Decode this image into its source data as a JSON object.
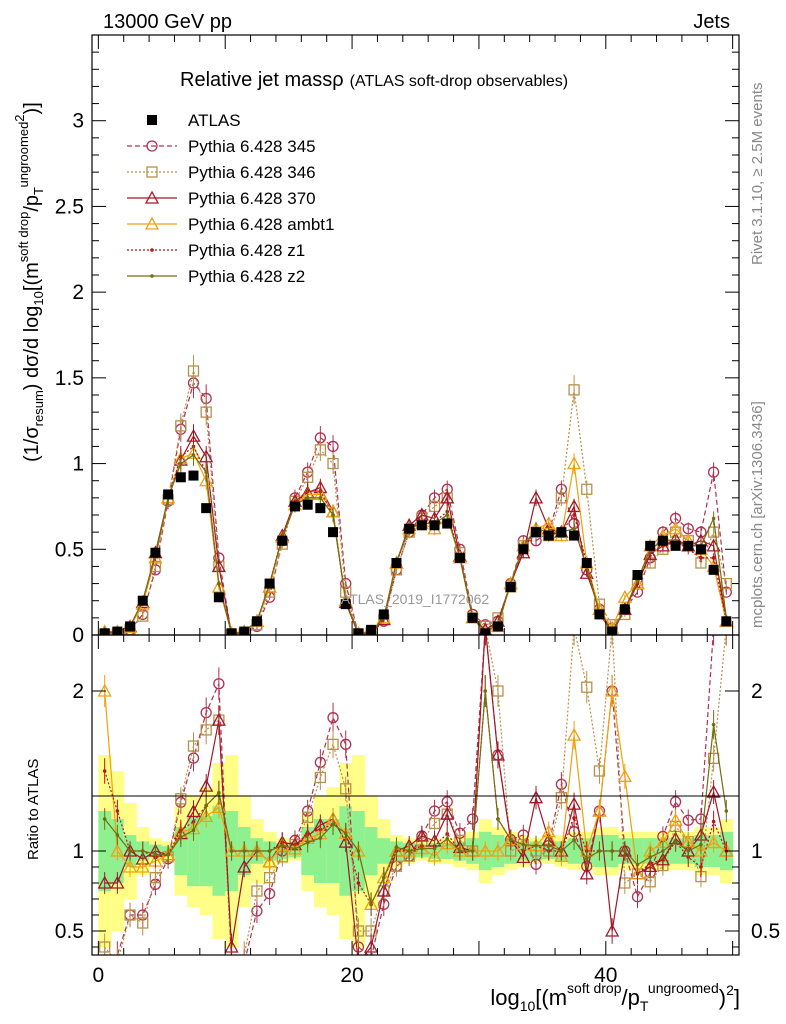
{
  "header": {
    "left": "13000 GeV pp",
    "right": "Jets"
  },
  "side_labels": {
    "rivet": "Rivet 3.1.10, ≥ 2.5M events",
    "mcplots": "mcplots.cern.ch [arXiv:1306.3436]"
  },
  "watermark": "ATLAS_2019_I1772062",
  "y_ratio_label": "Ratio to ATLAS",
  "x_axis": {
    "label_parts": {
      "log": "log",
      "sub": "10",
      "open": "[(m",
      "sup1": "soft drop",
      "mid": "/p",
      "sub2": "T",
      "sup2": "ungroomed",
      "exp": "2",
      "close": ")",
      "end": "]"
    }
  },
  "y_axis": {
    "label_parts": {
      "a": "(1/σ",
      "sub1": "resum",
      "b": ") dσ/d log",
      "sub2": "10",
      "c": "[(m",
      "sup1": "soft drop",
      "d": "/p",
      "sub3": "T",
      "sup2": "ungroomed",
      "sup3": "2",
      "e": ")]"
    }
  },
  "chart_data": {
    "type": "line",
    "title": "Relative jet massρ",
    "subtitle": "(ATLAS soft-drop observables)",
    "xlabel": "log10[(m^soft drop/pT^ungroomed)^2]",
    "ylabel": "(1/σ_resum) dσ/d log10[(m^soft drop/pT^ungroomed)^2]",
    "xlim": [
      -0.5,
      50.5
    ],
    "ylim": [
      0,
      3.5
    ],
    "x_ticks": [
      "0",
      "20",
      "40"
    ],
    "y_ticks": [
      "0",
      "0.5",
      "1",
      "1.5",
      "2",
      "2.5",
      "3"
    ],
    "ratio_ylim": [
      0.35,
      2.35
    ],
    "ratio_ticks": [
      "0.5",
      "1",
      "2"
    ],
    "legend_position": "top-left",
    "x": [
      0.5,
      1.5,
      2.5,
      3.5,
      4.5,
      5.5,
      6.5,
      7.5,
      8.5,
      9.5,
      10.5,
      11.5,
      12.5,
      13.5,
      14.5,
      15.5,
      16.5,
      17.5,
      18.5,
      19.5,
      20.5,
      21.5,
      22.5,
      23.5,
      24.5,
      25.5,
      26.5,
      27.5,
      28.5,
      29.5,
      30.5,
      31.5,
      32.5,
      33.5,
      34.5,
      35.5,
      36.5,
      37.5,
      38.5,
      39.5,
      40.5,
      41.5,
      42.5,
      43.5,
      44.5,
      45.5,
      46.5,
      47.5,
      48.5,
      49.5
    ],
    "series": [
      {
        "name": "ATLAS",
        "color": "#000000",
        "style": "square-filled",
        "values": [
          0.01,
          0.02,
          0.05,
          0.2,
          0.48,
          0.82,
          0.92,
          0.93,
          0.74,
          0.22,
          0.01,
          0.02,
          0.08,
          0.3,
          0.55,
          0.75,
          0.76,
          0.74,
          0.6,
          0.18,
          0.01,
          0.03,
          0.12,
          0.42,
          0.62,
          0.64,
          0.64,
          0.65,
          0.45,
          0.1,
          0.01,
          0.05,
          0.28,
          0.5,
          0.6,
          0.58,
          0.6,
          0.58,
          0.42,
          0.12,
          0.02,
          0.15,
          0.35,
          0.52,
          0.55,
          0.52,
          0.52,
          0.5,
          0.38,
          0.08
        ]
      },
      {
        "name": "Pythia 6.428 345",
        "color": "#b03050",
        "style": "circle-open-dashed",
        "values": [
          0.003,
          0.007,
          0.03,
          0.12,
          0.38,
          0.78,
          1.2,
          1.47,
          1.38,
          0.45,
          0.002,
          0.005,
          0.05,
          0.22,
          0.55,
          0.8,
          0.95,
          1.15,
          1.1,
          0.3,
          0.004,
          0.01,
          0.08,
          0.38,
          0.6,
          0.7,
          0.8,
          0.85,
          0.5,
          0.12,
          0.06,
          0.08,
          0.3,
          0.55,
          0.55,
          0.6,
          0.85,
          0.65,
          0.38,
          0.15,
          0.04,
          0.15,
          0.25,
          0.45,
          0.6,
          0.68,
          0.62,
          0.6,
          0.95,
          0.25
        ]
      },
      {
        "name": "Pythia 6.428 346",
        "color": "#b8904a",
        "style": "square-open-dotted",
        "values": [
          0.004,
          0.006,
          0.03,
          0.11,
          0.4,
          0.79,
          1.22,
          1.54,
          1.3,
          0.4,
          0.003,
          0.007,
          0.06,
          0.25,
          0.53,
          0.78,
          0.92,
          1.08,
          1.0,
          0.25,
          0.005,
          0.015,
          0.09,
          0.38,
          0.6,
          0.68,
          0.75,
          0.8,
          0.48,
          0.1,
          0.05,
          0.1,
          0.28,
          0.52,
          0.6,
          0.58,
          0.8,
          1.43,
          0.85,
          0.18,
          0.06,
          0.12,
          0.3,
          0.42,
          0.5,
          0.6,
          0.55,
          0.42,
          0.6,
          0.3
        ]
      },
      {
        "name": "Pythia 6.428 370",
        "color": "#a01828",
        "style": "triangle-open-solid",
        "values": [
          0.008,
          0.016,
          0.05,
          0.19,
          0.48,
          0.8,
          1.02,
          1.16,
          1.04,
          0.4,
          0.004,
          0.018,
          0.08,
          0.28,
          0.58,
          0.78,
          0.83,
          0.86,
          0.72,
          0.19,
          0.002,
          0.012,
          0.09,
          0.42,
          0.64,
          0.7,
          0.68,
          0.8,
          0.46,
          0.1,
          0.03,
          0.08,
          0.3,
          0.48,
          0.8,
          0.62,
          0.6,
          0.75,
          0.36,
          0.15,
          0.01,
          0.15,
          0.3,
          0.47,
          0.52,
          0.56,
          0.52,
          0.55,
          0.52,
          0.08
        ]
      },
      {
        "name": "Pythia 6.428 ambt1",
        "color": "#f0a010",
        "style": "triangle-open-solid",
        "values": [
          0.02,
          0.02,
          0.045,
          0.18,
          0.45,
          0.8,
          1.03,
          1.06,
          0.9,
          0.28,
          0.01,
          0.02,
          0.08,
          0.28,
          0.57,
          0.76,
          0.82,
          0.82,
          0.72,
          0.2,
          0.01,
          0.02,
          0.1,
          0.42,
          0.62,
          0.65,
          0.62,
          0.68,
          0.45,
          0.1,
          0.01,
          0.05,
          0.3,
          0.52,
          0.62,
          0.65,
          0.58,
          1.0,
          0.42,
          0.15,
          0.04,
          0.22,
          0.3,
          0.52,
          0.58,
          0.62,
          0.55,
          0.5,
          0.4,
          0.08
        ]
      },
      {
        "name": "Pythia 6.428 z1",
        "color": "#c01010",
        "style": "dot-dotted",
        "values": [
          0.015,
          0.025,
          0.05,
          0.2,
          0.46,
          0.8,
          1.04,
          1.1,
          0.95,
          0.3,
          0.01,
          0.02,
          0.08,
          0.3,
          0.58,
          0.78,
          0.84,
          0.84,
          0.7,
          0.2,
          0.008,
          0.02,
          0.1,
          0.42,
          0.62,
          0.66,
          0.66,
          0.72,
          0.45,
          0.1,
          0.02,
          0.06,
          0.3,
          0.5,
          0.62,
          0.58,
          0.6,
          0.7,
          0.42,
          0.12,
          0.02,
          0.15,
          0.3,
          0.48,
          0.52,
          0.55,
          0.5,
          0.45,
          0.45,
          0.08
        ]
      },
      {
        "name": "Pythia 6.428 z2",
        "color": "#707010",
        "style": "dot-solid",
        "values": [
          0.012,
          0.022,
          0.05,
          0.2,
          0.47,
          0.8,
          1.0,
          1.05,
          0.95,
          0.3,
          0.01,
          0.02,
          0.08,
          0.3,
          0.57,
          0.76,
          0.8,
          0.8,
          0.7,
          0.2,
          0.01,
          0.02,
          0.1,
          0.43,
          0.62,
          0.65,
          0.65,
          0.7,
          0.45,
          0.1,
          0.02,
          0.06,
          0.3,
          0.52,
          0.62,
          0.6,
          0.6,
          0.62,
          0.4,
          0.12,
          0.02,
          0.15,
          0.32,
          0.5,
          0.55,
          0.55,
          0.52,
          0.52,
          0.68,
          0.1
        ]
      }
    ],
    "uncertainty_bands": {
      "inner_color": "#8ff08f",
      "outer_color": "#ffff88",
      "inner_rel": [
        0.25,
        0.2,
        0.1,
        0.06,
        0.04,
        0.03,
        0.15,
        0.22,
        0.22,
        0.28,
        0.25,
        0.15,
        0.08,
        0.06,
        0.05,
        0.04,
        0.15,
        0.2,
        0.2,
        0.28,
        0.25,
        0.15,
        0.08,
        0.06,
        0.05,
        0.04,
        0.05,
        0.05,
        0.06,
        0.08,
        0.12,
        0.1,
        0.08,
        0.06,
        0.06,
        0.05,
        0.06,
        0.08,
        0.08,
        0.1,
        0.1,
        0.08,
        0.08,
        0.08,
        0.08,
        0.08,
        0.08,
        0.1,
        0.1,
        0.12
      ],
      "outer_rel": [
        0.6,
        0.5,
        0.3,
        0.15,
        0.08,
        0.06,
        0.28,
        0.35,
        0.4,
        0.55,
        0.6,
        0.35,
        0.2,
        0.12,
        0.08,
        0.06,
        0.25,
        0.35,
        0.4,
        0.55,
        0.6,
        0.35,
        0.2,
        0.1,
        0.08,
        0.06,
        0.08,
        0.08,
        0.1,
        0.12,
        0.2,
        0.15,
        0.12,
        0.1,
        0.08,
        0.08,
        0.1,
        0.12,
        0.12,
        0.15,
        0.15,
        0.12,
        0.12,
        0.12,
        0.12,
        0.12,
        0.12,
        0.15,
        0.15,
        0.2
      ]
    }
  }
}
